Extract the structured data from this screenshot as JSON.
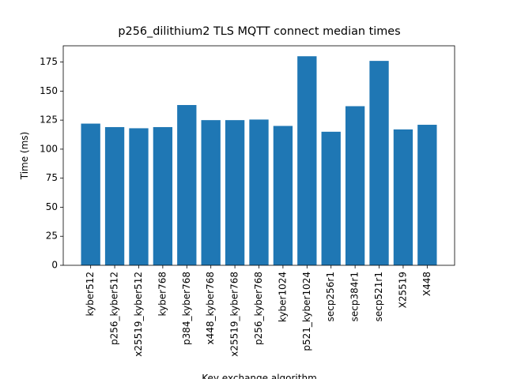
{
  "chart_data": {
    "type": "bar",
    "title": "p256_dilithium2 TLS MQTT connect median times",
    "xlabel": "Key exchange algorithm",
    "ylabel": "Time (ms)",
    "categories": [
      "kyber512",
      "p256_kyber512",
      "x25519_kyber512",
      "kyber768",
      "p384_kyber768",
      "x448_kyber768",
      "x25519_kyber768",
      "p256_kyber768",
      "kyber1024",
      "p521_kyber1024",
      "secp256r1",
      "secp384r1",
      "secp521r1",
      "X25519",
      "X448"
    ],
    "values": [
      122,
      119,
      118,
      119,
      138,
      125,
      125,
      125.5,
      120,
      180,
      115,
      137,
      176,
      117,
      121
    ],
    "color": "#1f77b4",
    "ylim": [
      0,
      189
    ],
    "yticks": [
      0,
      25,
      50,
      75,
      100,
      125,
      150,
      175
    ],
    "grid": false
  }
}
